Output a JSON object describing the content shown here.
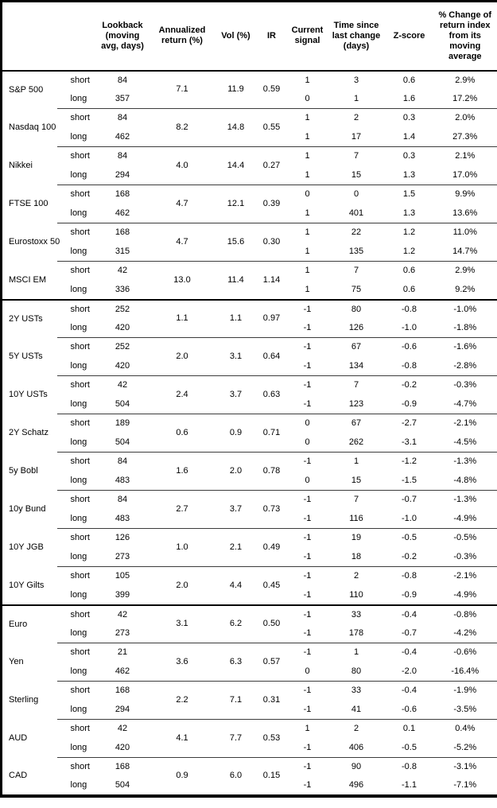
{
  "table": {
    "headers": [
      "",
      "",
      "Lookback (moving avg, days)",
      "Annualized return (%)",
      "Vol (%)",
      "IR",
      "Current signal",
      "Time since last change (days)",
      "Z-score",
      "% Change of return index from its moving average"
    ],
    "sections": [
      {
        "id": "equities",
        "groups": [
          {
            "asset": "S&P 500",
            "ret": "7.1",
            "vol": "11.9",
            "ir": "0.59",
            "rows": [
              {
                "side": "short",
                "lookback": "84",
                "signal": "1",
                "time": "3",
                "z": "0.6",
                "pct": "2.9%"
              },
              {
                "side": "long",
                "lookback": "357",
                "signal": "0",
                "time": "1",
                "z": "1.6",
                "pct": "17.2%"
              }
            ]
          },
          {
            "asset": "Nasdaq 100",
            "ret": "8.2",
            "vol": "14.8",
            "ir": "0.55",
            "rows": [
              {
                "side": "short",
                "lookback": "84",
                "signal": "1",
                "time": "2",
                "z": "0.3",
                "pct": "2.0%"
              },
              {
                "side": "long",
                "lookback": "462",
                "signal": "1",
                "time": "17",
                "z": "1.4",
                "pct": "27.3%"
              }
            ]
          },
          {
            "asset": "Nikkei",
            "ret": "4.0",
            "vol": "14.4",
            "ir": "0.27",
            "rows": [
              {
                "side": "short",
                "lookback": "84",
                "signal": "1",
                "time": "7",
                "z": "0.3",
                "pct": "2.1%"
              },
              {
                "side": "long",
                "lookback": "294",
                "signal": "1",
                "time": "15",
                "z": "1.3",
                "pct": "17.0%"
              }
            ]
          },
          {
            "asset": "FTSE 100",
            "ret": "4.7",
            "vol": "12.1",
            "ir": "0.39",
            "rows": [
              {
                "side": "short",
                "lookback": "168",
                "signal": "0",
                "time": "0",
                "z": "1.5",
                "pct": "9.9%"
              },
              {
                "side": "long",
                "lookback": "462",
                "signal": "1",
                "time": "401",
                "z": "1.3",
                "pct": "13.6%"
              }
            ]
          },
          {
            "asset": "Eurostoxx 50",
            "ret": "4.7",
            "vol": "15.6",
            "ir": "0.30",
            "rows": [
              {
                "side": "short",
                "lookback": "168",
                "signal": "1",
                "time": "22",
                "z": "1.2",
                "pct": "11.0%"
              },
              {
                "side": "long",
                "lookback": "315",
                "signal": "1",
                "time": "135",
                "z": "1.2",
                "pct": "14.7%"
              }
            ]
          },
          {
            "asset": "MSCI EM",
            "ret": "13.0",
            "vol": "11.4",
            "ir": "1.14",
            "rows": [
              {
                "side": "short",
                "lookback": "42",
                "signal": "1",
                "time": "7",
                "z": "0.6",
                "pct": "2.9%"
              },
              {
                "side": "long",
                "lookback": "336",
                "signal": "1",
                "time": "75",
                "z": "0.6",
                "pct": "9.2%"
              }
            ]
          }
        ]
      },
      {
        "id": "bonds",
        "groups": [
          {
            "asset": "2Y USTs",
            "ret": "1.1",
            "vol": "1.1",
            "ir": "0.97",
            "rows": [
              {
                "side": "short",
                "lookback": "252",
                "signal": "-1",
                "time": "80",
                "z": "-0.8",
                "pct": "-1.0%"
              },
              {
                "side": "long",
                "lookback": "420",
                "signal": "-1",
                "time": "126",
                "z": "-1.0",
                "pct": "-1.8%"
              }
            ]
          },
          {
            "asset": "5Y USTs",
            "ret": "2.0",
            "vol": "3.1",
            "ir": "0.64",
            "rows": [
              {
                "side": "short",
                "lookback": "252",
                "signal": "-1",
                "time": "67",
                "z": "-0.6",
                "pct": "-1.6%"
              },
              {
                "side": "long",
                "lookback": "420",
                "signal": "-1",
                "time": "134",
                "z": "-0.8",
                "pct": "-2.8%"
              }
            ]
          },
          {
            "asset": "10Y USTs",
            "ret": "2.4",
            "vol": "3.7",
            "ir": "0.63",
            "rows": [
              {
                "side": "short",
                "lookback": "42",
                "signal": "-1",
                "time": "7",
                "z": "-0.2",
                "pct": "-0.3%"
              },
              {
                "side": "long",
                "lookback": "504",
                "signal": "-1",
                "time": "123",
                "z": "-0.9",
                "pct": "-4.7%"
              }
            ]
          },
          {
            "asset": "2Y Schatz",
            "ret": "0.6",
            "vol": "0.9",
            "ir": "0.71",
            "rows": [
              {
                "side": "short",
                "lookback": "189",
                "signal": "0",
                "time": "67",
                "z": "-2.7",
                "pct": "-2.1%"
              },
              {
                "side": "long",
                "lookback": "504",
                "signal": "0",
                "time": "262",
                "z": "-3.1",
                "pct": "-4.5%"
              }
            ]
          },
          {
            "asset": "5y Bobl",
            "ret": "1.6",
            "vol": "2.0",
            "ir": "0.78",
            "rows": [
              {
                "side": "short",
                "lookback": "84",
                "signal": "-1",
                "time": "1",
                "z": "-1.2",
                "pct": "-1.3%"
              },
              {
                "side": "long",
                "lookback": "483",
                "signal": "0",
                "time": "15",
                "z": "-1.5",
                "pct": "-4.8%"
              }
            ]
          },
          {
            "asset": "10y Bund",
            "ret": "2.7",
            "vol": "3.7",
            "ir": "0.73",
            "rows": [
              {
                "side": "short",
                "lookback": "84",
                "signal": "-1",
                "time": "7",
                "z": "-0.7",
                "pct": "-1.3%"
              },
              {
                "side": "long",
                "lookback": "483",
                "signal": "-1",
                "time": "116",
                "z": "-1.0",
                "pct": "-4.9%"
              }
            ]
          },
          {
            "asset": "10Y JGB",
            "ret": "1.0",
            "vol": "2.1",
            "ir": "0.49",
            "rows": [
              {
                "side": "short",
                "lookback": "126",
                "signal": "-1",
                "time": "19",
                "z": "-0.5",
                "pct": "-0.5%"
              },
              {
                "side": "long",
                "lookback": "273",
                "signal": "-1",
                "time": "18",
                "z": "-0.2",
                "pct": "-0.3%"
              }
            ]
          },
          {
            "asset": "10Y Gilts",
            "ret": "2.0",
            "vol": "4.4",
            "ir": "0.45",
            "rows": [
              {
                "side": "short",
                "lookback": "105",
                "signal": "-1",
                "time": "2",
                "z": "-0.8",
                "pct": "-2.1%"
              },
              {
                "side": "long",
                "lookback": "399",
                "signal": "-1",
                "time": "110",
                "z": "-0.9",
                "pct": "-4.9%"
              }
            ]
          }
        ]
      },
      {
        "id": "currencies",
        "groups": [
          {
            "asset": "Euro",
            "ret": "3.1",
            "vol": "6.2",
            "ir": "0.50",
            "rows": [
              {
                "side": "short",
                "lookback": "42",
                "signal": "-1",
                "time": "33",
                "z": "-0.4",
                "pct": "-0.8%"
              },
              {
                "side": "long",
                "lookback": "273",
                "signal": "-1",
                "time": "178",
                "z": "-0.7",
                "pct": "-4.2%"
              }
            ]
          },
          {
            "asset": "Yen",
            "ret": "3.6",
            "vol": "6.3",
            "ir": "0.57",
            "rows": [
              {
                "side": "short",
                "lookback": "21",
                "signal": "-1",
                "time": "1",
                "z": "-0.4",
                "pct": "-0.6%"
              },
              {
                "side": "long",
                "lookback": "462",
                "signal": "0",
                "time": "80",
                "z": "-2.0",
                "pct": "-16.4%"
              }
            ]
          },
          {
            "asset": "Sterling",
            "ret": "2.2",
            "vol": "7.1",
            "ir": "0.31",
            "rows": [
              {
                "side": "short",
                "lookback": "168",
                "signal": "-1",
                "time": "33",
                "z": "-0.4",
                "pct": "-1.9%"
              },
              {
                "side": "long",
                "lookback": "294",
                "signal": "-1",
                "time": "41",
                "z": "-0.6",
                "pct": "-3.5%"
              }
            ]
          },
          {
            "asset": "AUD",
            "ret": "4.1",
            "vol": "7.7",
            "ir": "0.53",
            "rows": [
              {
                "side": "short",
                "lookback": "42",
                "signal": "1",
                "time": "2",
                "z": "0.1",
                "pct": "0.4%"
              },
              {
                "side": "long",
                "lookback": "420",
                "signal": "-1",
                "time": "406",
                "z": "-0.5",
                "pct": "-5.2%"
              }
            ]
          },
          {
            "asset": "CAD",
            "ret": "0.9",
            "vol": "6.0",
            "ir": "0.15",
            "rows": [
              {
                "side": "short",
                "lookback": "168",
                "signal": "-1",
                "time": "90",
                "z": "-0.8",
                "pct": "-3.1%"
              },
              {
                "side": "long",
                "lookback": "504",
                "signal": "-1",
                "time": "496",
                "z": "-1.1",
                "pct": "-7.1%"
              }
            ]
          }
        ]
      }
    ]
  }
}
